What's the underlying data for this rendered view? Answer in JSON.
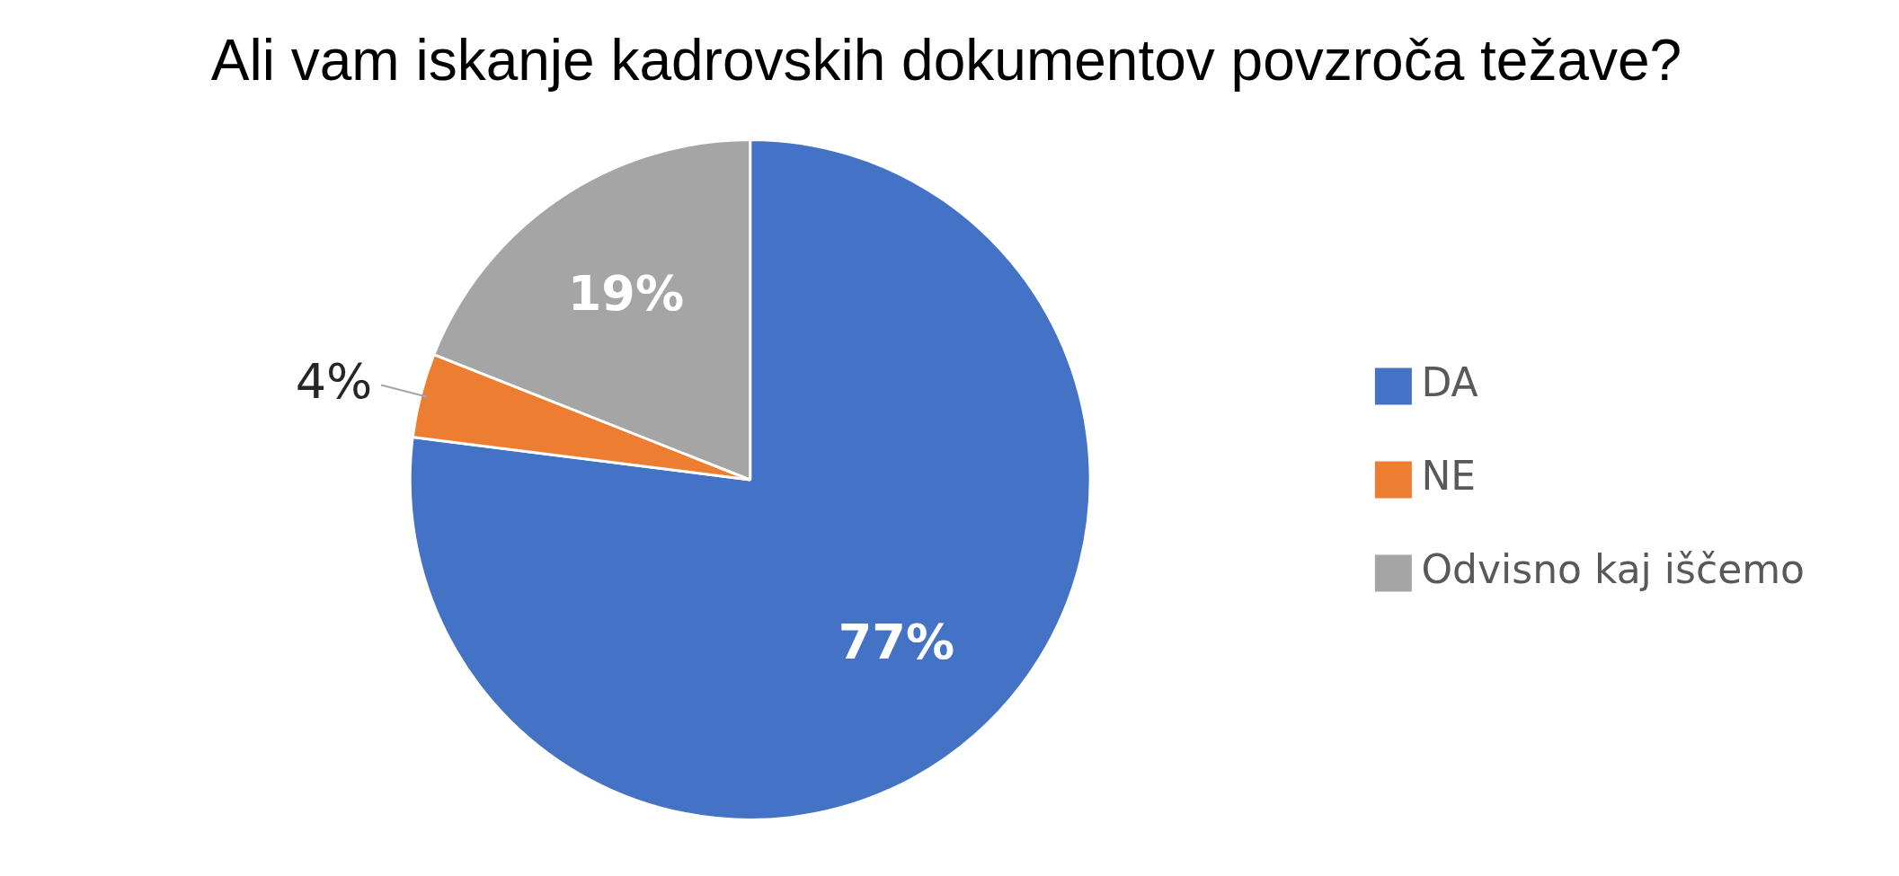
{
  "chart_data": {
    "type": "pie",
    "title": "Ali vam iskanje kadrovskih dokumentov povzroča težave?",
    "categories": [
      "DA",
      "NE",
      "Odvisno kaj iščemo"
    ],
    "values": [
      77,
      4,
      19
    ],
    "colors": [
      "#4472c4",
      "#ed7d31",
      "#a5a5a5"
    ],
    "value_labels": [
      "77%",
      "4%",
      "19%"
    ],
    "legend": "right"
  }
}
